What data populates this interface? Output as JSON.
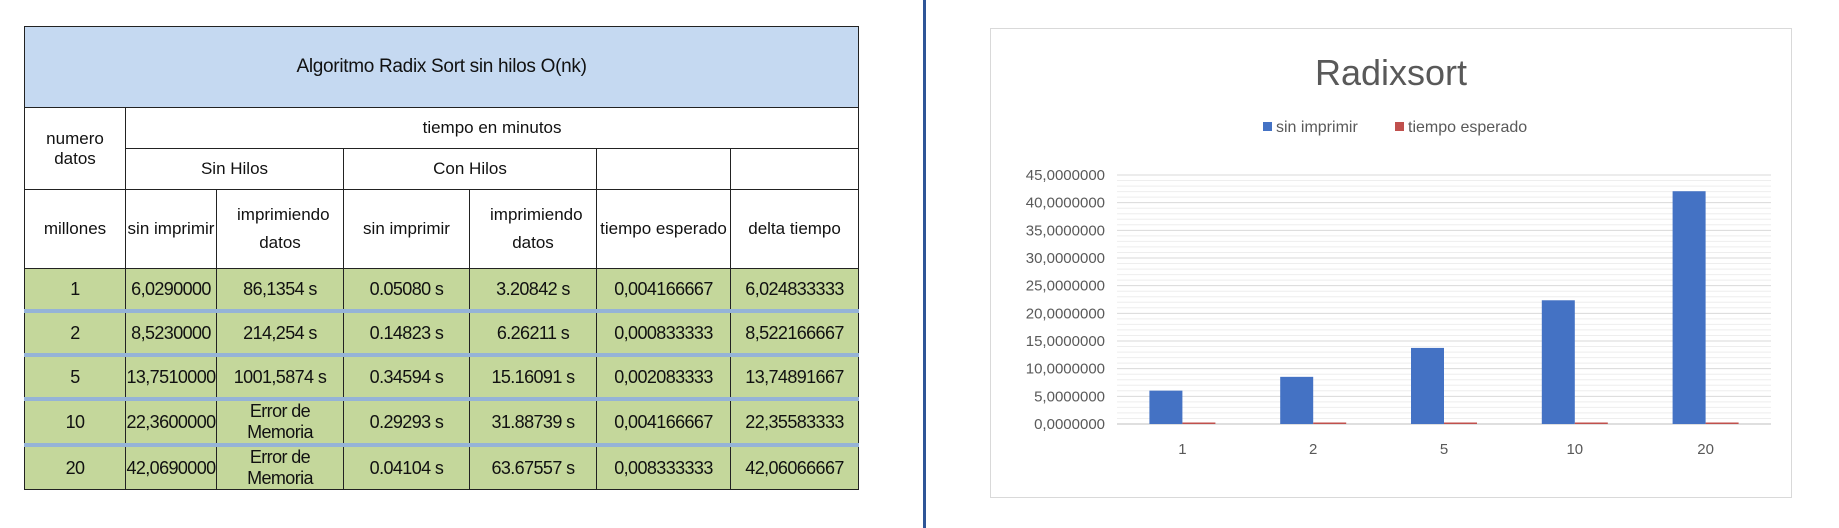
{
  "table": {
    "title": "Algoritmo Radix Sort sin hilos O(nk)",
    "header": {
      "numero_datos": "numero datos",
      "tiempo_minutos": "tiempo en minutos",
      "sin_hilos": "Sin Hilos",
      "con_hilos": "Con Hilos",
      "millones": "millones",
      "sin_imprimir_1": "sin imprimir",
      "imprimiendo_1": "imprimiendo datos",
      "sin_imprimir_2": "sin imprimir",
      "imprimiendo_2": "imprimiendo datos",
      "tiempo_esperado": "tiempo esperado",
      "delta_tiempo": "delta tiempo"
    },
    "rows": [
      [
        "1",
        "6,0290000",
        "86,1354 s",
        "0.05080 s",
        "3.20842 s",
        "0,004166667",
        "6,024833333"
      ],
      [
        "2",
        "8,5230000",
        "214,254 s",
        "0.14823 s",
        "6.26211 s",
        "0,000833333",
        "8,522166667"
      ],
      [
        "5",
        "13,7510000",
        "1001,5874 s",
        "0.34594 s",
        "15.16091 s",
        "0,002083333",
        "13,74891667"
      ],
      [
        "10",
        "22,3600000",
        "Error de Memoria",
        "0.29293 s",
        "31.88739 s",
        "0,004166667",
        "22,35583333"
      ],
      [
        "20",
        "42,0690000",
        "Error de Memoria",
        "0.04104 s",
        "63.67557 s",
        "0,008333333",
        "42,06066667"
      ]
    ]
  },
  "chart_data": {
    "type": "bar",
    "title": "Radixsort",
    "categories": [
      "1",
      "2",
      "5",
      "10",
      "20"
    ],
    "series": [
      {
        "name": "sin imprimir",
        "color": "#4472c4",
        "values": [
          6.029,
          8.523,
          13.751,
          22.36,
          42.069
        ]
      },
      {
        "name": "tiempo esperado",
        "color": "#c0504d",
        "values": [
          0.004166667,
          0.000833333,
          0.002083333,
          0.004166667,
          0.008333333
        ]
      }
    ],
    "ylim": [
      0,
      45
    ],
    "yticks": [
      0,
      5,
      10,
      15,
      20,
      25,
      30,
      35,
      40,
      45
    ],
    "ytick_labels": [
      "0,0000000",
      "5,0000000",
      "10,0000000",
      "15,0000000",
      "20,0000000",
      "25,0000000",
      "30,0000000",
      "35,0000000",
      "40,0000000",
      "45,0000000"
    ],
    "legend_position": "top",
    "grid": true,
    "xlabel": "",
    "ylabel": ""
  }
}
